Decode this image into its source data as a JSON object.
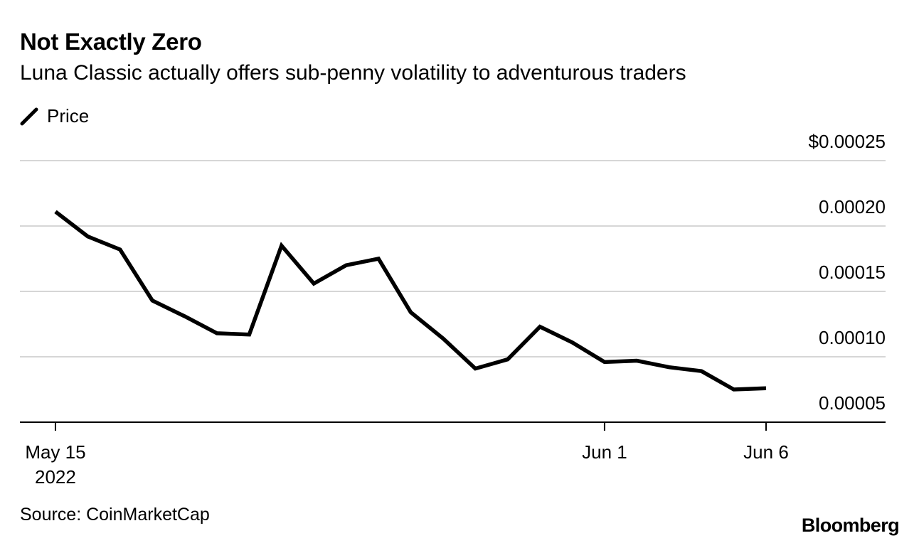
{
  "chart_data": {
    "type": "line",
    "title": "Not Exactly Zero",
    "subtitle": "Luna Classic actually offers sub-penny volatility to adventurous traders",
    "legend": [
      {
        "label": "Price",
        "color": "#000000"
      }
    ],
    "series": [
      {
        "name": "Price",
        "x": [
          0,
          1,
          2,
          3,
          4,
          5,
          6,
          7,
          8,
          9,
          10,
          11,
          12,
          13,
          14,
          15,
          16,
          17,
          18,
          19,
          20,
          21,
          22
        ],
        "values": [
          0.000211,
          0.000192,
          0.000182,
          0.000143,
          0.000131,
          0.000118,
          0.000117,
          0.000185,
          0.000156,
          0.00017,
          0.000175,
          0.000134,
          0.000114,
          9.1e-05,
          9.8e-05,
          0.000123,
          0.000111,
          9.6e-05,
          9.7e-05,
          9.2e-05,
          8.9e-05,
          7.5e-05,
          7.6e-05
        ]
      }
    ],
    "x_ticks": [
      {
        "x": 0,
        "label": "May 15",
        "sublabel": "2022"
      },
      {
        "x": 17,
        "label": "Jun 1",
        "sublabel": ""
      },
      {
        "x": 22,
        "label": "Jun 6",
        "sublabel": ""
      }
    ],
    "y_ticks": [
      {
        "value": 0.00025,
        "label": "$0.00025"
      },
      {
        "value": 0.0002,
        "label": "0.00020"
      },
      {
        "value": 0.00015,
        "label": "0.00015"
      },
      {
        "value": 0.0001,
        "label": "0.00010"
      },
      {
        "value": 5e-05,
        "label": "0.00005"
      }
    ],
    "ylim": [
      5e-05,
      0.00025
    ],
    "xlim": [
      -1.1,
      25.7
    ],
    "grid": true,
    "xlabel": "",
    "ylabel": ""
  },
  "footer": {
    "source": "Source: CoinMarketCap",
    "brand": "Bloomberg"
  }
}
